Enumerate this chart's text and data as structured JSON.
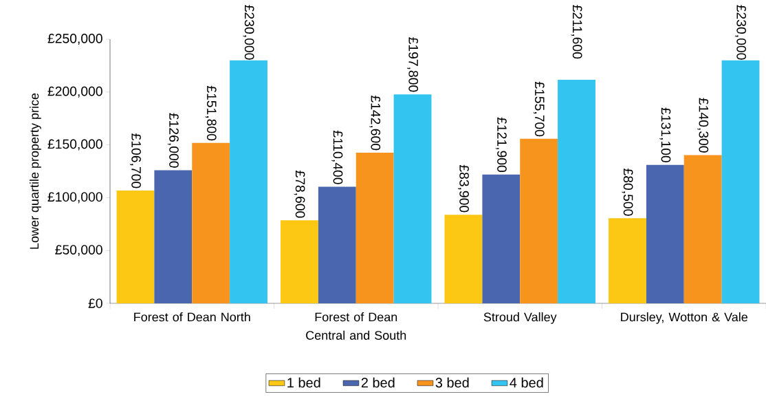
{
  "chart_data": {
    "type": "bar",
    "ylabel": "Lower quartile property price",
    "categories": [
      "Forest of Dean North",
      "Forest of Dean Central and South",
      "Stroud Valley",
      "Dursley, Wotton & Vale"
    ],
    "series": [
      {
        "name": "1 bed",
        "color": "#fcc813",
        "values": [
          106700,
          78600,
          83900,
          80500
        ],
        "value_labels": [
          "£106,700",
          "£78,600",
          "£83,900",
          "£80,500"
        ]
      },
      {
        "name": "2 bed",
        "color": "#4a66ae",
        "values": [
          126000,
          110400,
          121900,
          131100
        ],
        "value_labels": [
          "£126,000",
          "£110,400",
          "£121,900",
          "£131,100"
        ]
      },
      {
        "name": "3 bed",
        "color": "#f7941d",
        "values": [
          151800,
          142600,
          155700,
          140300
        ],
        "value_labels": [
          "£151,800",
          "£142,600",
          "£155,700",
          "£140,300"
        ]
      },
      {
        "name": "4 bed",
        "color": "#33c4f0",
        "values": [
          230000,
          197800,
          211600,
          230000
        ],
        "value_labels": [
          "£230,000",
          "£197,800",
          "£211,600",
          "£230,000"
        ]
      }
    ],
    "ylim": [
      0,
      250000
    ],
    "yticks": [
      {
        "value": 0,
        "label": "£0"
      },
      {
        "value": 50000,
        "label": "£50,000"
      },
      {
        "value": 100000,
        "label": "£100,000"
      },
      {
        "value": 150000,
        "label": "£150,000"
      },
      {
        "value": 200000,
        "label": "£200,000"
      },
      {
        "value": 250000,
        "label": "£250,000"
      }
    ],
    "grid": false,
    "legend": "bottom"
  }
}
